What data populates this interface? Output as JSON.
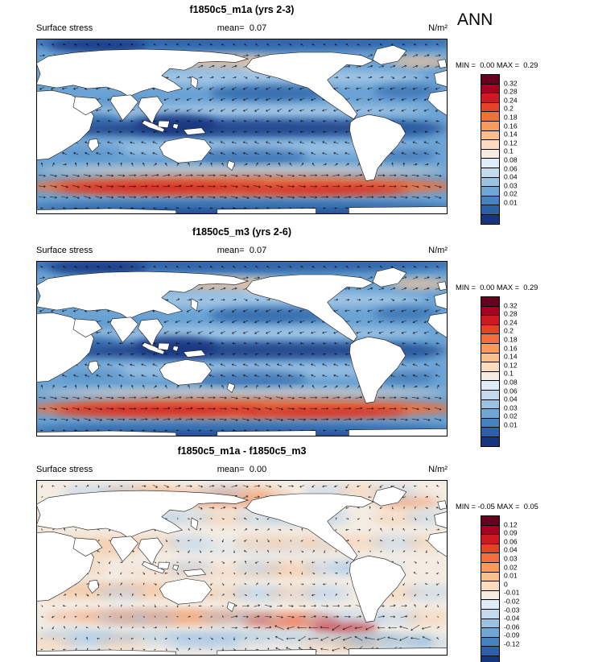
{
  "figure": {
    "season": "ANN"
  },
  "chart_data": [
    {
      "type": "heatmap",
      "panel": "top",
      "title": "f1850c5_m1a (yrs 2-3)",
      "variable": "Surface stress",
      "mean_text": "mean=  0.07",
      "mean": 0.07,
      "units": "N/m²",
      "minmax_text": "MIN =  0.00 MAX =  0.29",
      "min": 0.0,
      "max": 0.29,
      "overlay": "surface stress vector arrows over ocean",
      "map_style": "absolute",
      "colorbar_levels": [
        "0.32",
        "0.28",
        "0.24",
        "0.2",
        "0.18",
        "0.16",
        "0.14",
        "0.12",
        "0.1",
        "0.08",
        "0.06",
        "0.04",
        "0.03",
        "0.02",
        "0.01"
      ],
      "colorbar_colors": [
        "#67001f",
        "#a50021",
        "#cb1a22",
        "#e24429",
        "#ef703b",
        "#f89a5e",
        "#fbbf8a",
        "#fcdcc0",
        "#f6ece2",
        "#e0ecf7",
        "#c2d9ee",
        "#9cc2e2",
        "#6fa6d4",
        "#4583c0",
        "#2b60a5",
        "#16357f"
      ]
    },
    {
      "type": "heatmap",
      "panel": "middle",
      "title": "f1850c5_m3 (yrs 2-6)",
      "variable": "Surface stress",
      "mean_text": "mean=  0.07",
      "mean": 0.07,
      "units": "N/m²",
      "minmax_text": "MIN =  0.00 MAX =  0.29",
      "min": 0.0,
      "max": 0.29,
      "overlay": "surface stress vector arrows over ocean",
      "map_style": "absolute",
      "colorbar_levels": [
        "0.32",
        "0.28",
        "0.24",
        "0.2",
        "0.18",
        "0.16",
        "0.14",
        "0.12",
        "0.1",
        "0.08",
        "0.06",
        "0.04",
        "0.03",
        "0.02",
        "0.01"
      ],
      "colorbar_colors": [
        "#67001f",
        "#a50021",
        "#cb1a22",
        "#e24429",
        "#ef703b",
        "#f89a5e",
        "#fbbf8a",
        "#fcdcc0",
        "#f6ece2",
        "#e0ecf7",
        "#c2d9ee",
        "#9cc2e2",
        "#6fa6d4",
        "#4583c0",
        "#2b60a5",
        "#16357f"
      ]
    },
    {
      "type": "heatmap",
      "panel": "bottom",
      "title": "f1850c5_m1a - f1850c5_m3",
      "variable": "Surface stress",
      "mean_text": "mean=  0.00",
      "mean": 0.0,
      "units": "N/m²",
      "minmax_text": "MIN = -0.05 MAX =  0.05",
      "min": -0.05,
      "max": 0.05,
      "overlay": "difference vector arrows over ocean",
      "map_style": "difference",
      "colorbar_levels": [
        "0.12",
        "0.09",
        "0.06",
        "0.04",
        "0.03",
        "0.02",
        "0.01",
        "0",
        "-0.01",
        "-0.02",
        "-0.03",
        "-0.04",
        "-0.06",
        "-0.09",
        "-0.12"
      ],
      "colorbar_colors": [
        "#67001f",
        "#a50021",
        "#cb1a22",
        "#e24429",
        "#ef703b",
        "#f89a5e",
        "#fbbf8a",
        "#fcdcc0",
        "#f6ece2",
        "#e0ecf7",
        "#c2d9ee",
        "#9cc2e2",
        "#6fa6d4",
        "#4583c0",
        "#2b60a5",
        "#16357f"
      ]
    }
  ]
}
